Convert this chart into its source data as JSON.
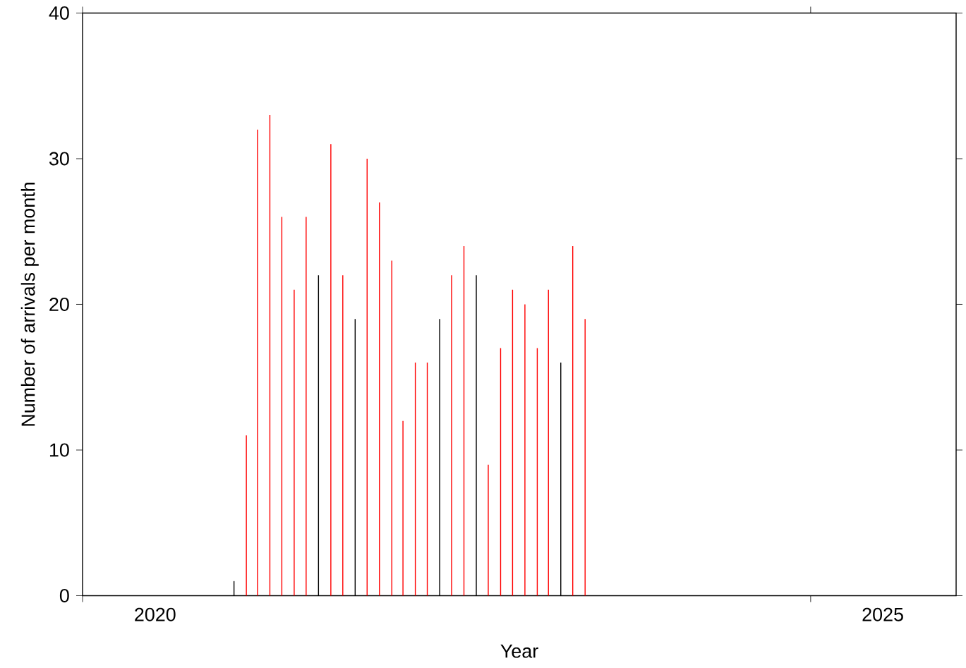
{
  "chart_data": {
    "type": "bar",
    "xlabel": "Year",
    "ylabel": "Number of arrivals per month",
    "x": [
      "2021-01-15",
      "2021-02-15",
      "2021-03-15",
      "2021-04-15",
      "2021-05-15",
      "2021-06-15",
      "2021-07-15",
      "2021-08-15",
      "2021-09-15",
      "2021-10-15",
      "2021-11-15",
      "2021-12-15",
      "2022-01-15",
      "2022-02-15",
      "2022-03-15",
      "2022-04-15",
      "2022-05-15",
      "2022-06-15",
      "2022-07-15",
      "2022-08-15",
      "2022-09-15",
      "2022-10-15",
      "2022-11-15",
      "2022-12-15",
      "2023-01-15",
      "2023-02-15",
      "2023-03-15",
      "2023-04-15",
      "2023-05-15",
      "2023-06-15"
    ],
    "values": [
      1,
      11,
      32,
      33,
      26,
      21,
      26,
      22,
      31,
      22,
      19,
      30,
      27,
      23,
      12,
      16,
      16,
      19,
      22,
      24,
      22,
      9,
      17,
      21,
      20,
      17,
      21,
      16,
      24,
      19
    ],
    "colors": [
      "#000000",
      "#ff0000",
      "#ff0000",
      "#ff0000",
      "#ff0000",
      "#ff0000",
      "#ff0000",
      "#000000",
      "#ff0000",
      "#ff0000",
      "#000000",
      "#ff0000",
      "#ff0000",
      "#ff0000",
      "#ff0000",
      "#ff0000",
      "#ff0000",
      "#000000",
      "#ff0000",
      "#ff0000",
      "#000000",
      "#ff0000",
      "#ff0000",
      "#ff0000",
      "#ff0000",
      "#ff0000",
      "#ff0000",
      "#000000",
      "#ff0000",
      "#ff0000"
    ],
    "xlim": [
      "2020-01-01",
      "2026-01-01"
    ],
    "xticks": [
      {
        "value": "2020-01-01",
        "label": null
      },
      {
        "value": "2020-07-01",
        "label": "2020"
      },
      {
        "value": "2025-01-01",
        "label": null
      },
      {
        "value": "2025-07-01",
        "label": "2025"
      }
    ],
    "ylim": [
      0,
      40
    ],
    "yticks": [
      0,
      10,
      20,
      30,
      40
    ]
  }
}
